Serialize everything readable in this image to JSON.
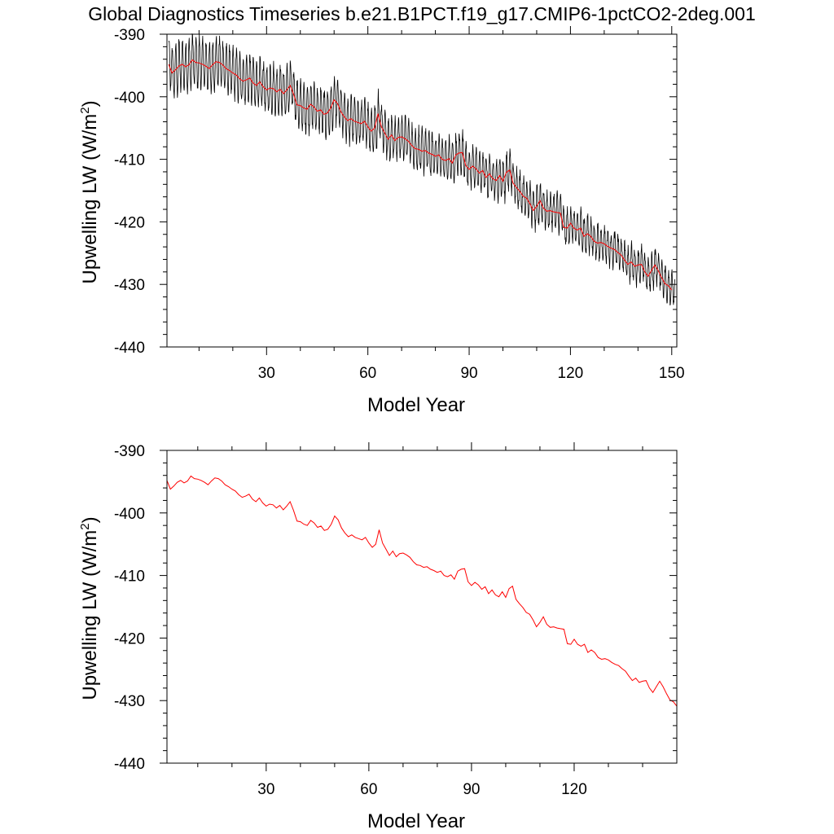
{
  "figure_title": "Global Diagnostics Timeseries b.e21.B1PCT.f19_g17.CMIP6-1pctCO2-2deg.001",
  "colors": {
    "monthly": "#000000",
    "annual": "#ff0000",
    "axis": "#000000"
  },
  "chart_data": [
    {
      "type": "line",
      "panel": "top",
      "title": "",
      "xlabel": "Model Year",
      "ylabel": "Upwelling LW (W/m2)",
      "ylabel_parts": {
        "main": "Upwelling LW (W/m",
        "sup": "2",
        "end": ")"
      },
      "xlim": [
        0.5,
        151.5
      ],
      "ylim": [
        -440,
        -390
      ],
      "xticks": [
        30,
        60,
        90,
        120,
        150
      ],
      "yticks": [
        -390,
        -400,
        -410,
        -420,
        -430,
        -440
      ],
      "series": [
        {
          "role": "monthly",
          "color": "#000000",
          "values_note": "monthly values: annual mean plus seasonal cycle (amplitude ~4 W/m2 early, ~2.5 W/m2 late)",
          "seasonal_amplitude": [
            4.0,
            2.5
          ]
        },
        {
          "role": "annual",
          "color": "#ff0000",
          "values_ref": "annual_mean"
        }
      ]
    },
    {
      "type": "line",
      "panel": "bottom",
      "title": "",
      "xlabel": "Model Year",
      "ylabel": "Upwelling LW (W/m2)",
      "ylabel_parts": {
        "main": "Upwelling LW (W/m",
        "sup": "2",
        "end": ")"
      },
      "xlim": [
        1,
        150
      ],
      "ylim": [
        -440,
        -390
      ],
      "xticks": [
        30,
        60,
        90,
        120
      ],
      "yticks": [
        -390,
        -400,
        -410,
        -420,
        -430,
        -440
      ],
      "series": [
        {
          "role": "annual",
          "color": "#ff0000",
          "values_ref": "annual_mean"
        }
      ]
    }
  ],
  "annual_mean": {
    "x_start": 1,
    "x_step": 1,
    "y": [
      -394.8,
      -396.2,
      -395.7,
      -395.1,
      -394.8,
      -395.2,
      -394.9,
      -394.1,
      -394.5,
      -394.6,
      -394.8,
      -395.1,
      -395.5,
      -394.9,
      -394.4,
      -394.5,
      -394.9,
      -395.5,
      -395.8,
      -396.2,
      -396.5,
      -397.1,
      -397.5,
      -397.3,
      -397.0,
      -397.8,
      -398.2,
      -397.6,
      -398.4,
      -398.9,
      -398.6,
      -398.7,
      -399.2,
      -398.8,
      -399.5,
      -398.9,
      -398.2,
      -399.6,
      -401.3,
      -401.4,
      -401.8,
      -402.0,
      -401.2,
      -401.6,
      -402.3,
      -402.1,
      -402.8,
      -402.6,
      -401.8,
      -400.5,
      -401.1,
      -402.4,
      -403.2,
      -403.8,
      -403.5,
      -403.9,
      -404.1,
      -404.3,
      -403.9,
      -404.8,
      -405.5,
      -405.0,
      -402.7,
      -404.8,
      -405.8,
      -406.8,
      -406.1,
      -407.0,
      -406.5,
      -406.4,
      -406.7,
      -407.1,
      -407.8,
      -408.3,
      -408.4,
      -408.7,
      -408.6,
      -409.0,
      -409.2,
      -409.5,
      -409.3,
      -410.0,
      -410.2,
      -409.9,
      -410.6,
      -409.3,
      -409.0,
      -408.9,
      -411.0,
      -411.6,
      -411.1,
      -411.5,
      -412.2,
      -411.8,
      -412.9,
      -412.3,
      -413.1,
      -413.4,
      -412.6,
      -413.5,
      -412.1,
      -411.7,
      -413.8,
      -414.5,
      -415.1,
      -415.9,
      -416.2,
      -417.1,
      -418.2,
      -417.5,
      -416.6,
      -417.8,
      -418.3,
      -418.2,
      -418.4,
      -418.5,
      -418.6,
      -420.9,
      -421.0,
      -420.2,
      -421.0,
      -421.3,
      -421.0,
      -422.3,
      -421.9,
      -422.3,
      -423.1,
      -423.4,
      -423.3,
      -423.5,
      -423.9,
      -424.2,
      -424.4,
      -424.9,
      -425.3,
      -426.1,
      -426.8,
      -426.4,
      -427.1,
      -426.9,
      -426.8,
      -428.0,
      -428.7,
      -427.8,
      -426.9,
      -427.8,
      -428.9,
      -429.9,
      -430.2,
      -430.9
    ]
  }
}
